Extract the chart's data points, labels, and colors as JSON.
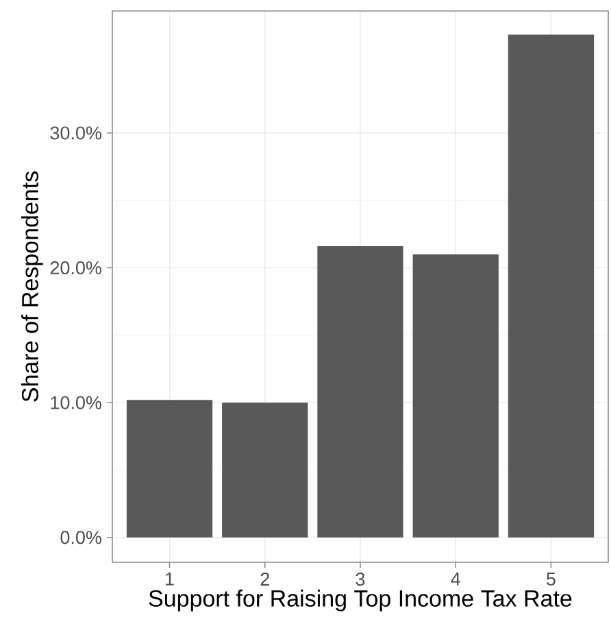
{
  "chart_data": {
    "type": "bar",
    "xlabel": "Support for Raising Top Income Tax Rate",
    "ylabel": "Share of Respondents",
    "categories": [
      "1",
      "2",
      "3",
      "4",
      "5"
    ],
    "values": [
      10.2,
      10.0,
      21.6,
      21.0,
      37.3
    ],
    "color": "#595959",
    "ylim": [
      -1.84,
      39.05
    ],
    "yticks": [
      {
        "value": 0,
        "label": "0.0%"
      },
      {
        "value": 10,
        "label": "10.0%"
      },
      {
        "value": 20,
        "label": "20.0%"
      },
      {
        "value": 30,
        "label": "30.0%"
      }
    ],
    "grid": true
  }
}
